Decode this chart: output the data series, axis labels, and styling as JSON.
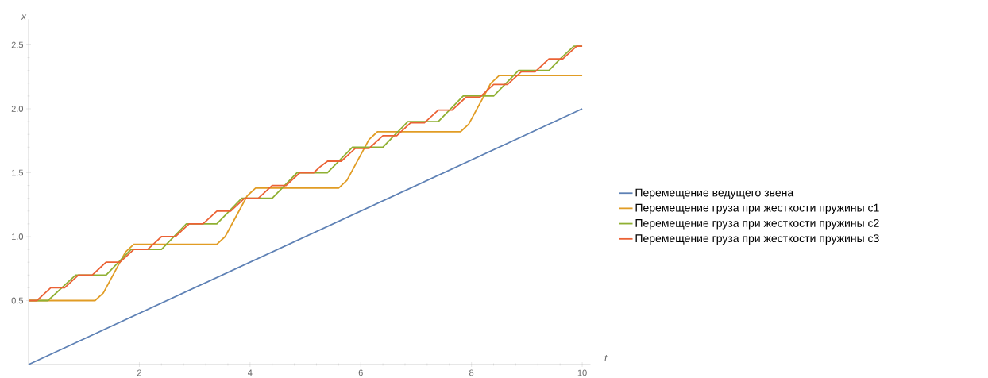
{
  "chart_data": {
    "type": "line",
    "xlabel": "t",
    "ylabel": "x",
    "xlim": [
      0,
      10.15
    ],
    "ylim": [
      0,
      2.7
    ],
    "xticks": [
      2,
      4,
      6,
      8,
      10
    ],
    "yticks": [
      0.5,
      {
        "value": 1,
        "label": "1.0"
      },
      1.5,
      {
        "value": 2,
        "label": "2.0"
      },
      2.5
    ],
    "legend": "right",
    "grid": false,
    "marker": "none",
    "line_style": "solid",
    "series": [
      {
        "name": "Перемещение ведущего звена",
        "color": "#5e81b5",
        "x": [
          0,
          10
        ],
        "values": [
          0,
          2.0
        ]
      },
      {
        "name": "Перемещение груза при жесткости пружины с1",
        "color": "#e19c24",
        "x": [
          0,
          1.2,
          1.35,
          1.55,
          1.75,
          1.9,
          3.4,
          3.55,
          3.75,
          3.95,
          4.1,
          5.6,
          5.75,
          5.95,
          6.15,
          6.3,
          7.8,
          7.95,
          8.15,
          8.35,
          8.5,
          10
        ],
        "values": [
          0.5,
          0.5,
          0.56,
          0.72,
          0.88,
          0.94,
          0.94,
          1.0,
          1.16,
          1.32,
          1.38,
          1.38,
          1.44,
          1.6,
          1.76,
          1.82,
          1.82,
          1.88,
          2.04,
          2.2,
          2.26,
          2.26
        ]
      },
      {
        "name": "Перемещение груза при жесткости пружины с2",
        "color": "#8fb032",
        "x": [
          0,
          0.35,
          0.6,
          0.85,
          1.4,
          1.625,
          1.85,
          2.4,
          2.625,
          2.85,
          3.4,
          3.625,
          3.85,
          4.4,
          4.625,
          4.85,
          5.4,
          5.625,
          5.85,
          6.4,
          6.625,
          6.85,
          7.4,
          7.625,
          7.85,
          8.4,
          8.625,
          8.85,
          9.4,
          9.625,
          9.85,
          10
        ],
        "values": [
          0.5,
          0.5,
          0.6,
          0.7,
          0.7,
          0.8,
          0.9,
          0.9,
          1.0,
          1.1,
          1.1,
          1.2,
          1.3,
          1.3,
          1.4,
          1.5,
          1.5,
          1.6,
          1.7,
          1.7,
          1.8,
          1.9,
          1.9,
          2.0,
          2.1,
          2.1,
          2.2,
          2.3,
          2.3,
          2.4,
          2.49,
          2.49
        ]
      },
      {
        "name": "Перемещение груза при жесткости пружины с3",
        "color": "#eb6235",
        "x": [
          0,
          0.15,
          0.275,
          0.4,
          0.65,
          0.775,
          0.9,
          1.15,
          1.275,
          1.4,
          1.65,
          1.775,
          1.9,
          2.15,
          2.275,
          2.4,
          2.65,
          2.775,
          2.9,
          3.15,
          3.275,
          3.4,
          3.65,
          3.775,
          3.9,
          4.15,
          4.275,
          4.4,
          4.65,
          4.775,
          4.9,
          5.15,
          5.275,
          5.4,
          5.65,
          5.775,
          5.9,
          6.15,
          6.275,
          6.4,
          6.65,
          6.775,
          6.9,
          7.15,
          7.275,
          7.4,
          7.65,
          7.775,
          7.9,
          8.15,
          8.275,
          8.4,
          8.65,
          8.775,
          8.9,
          9.15,
          9.275,
          9.4,
          9.65,
          9.775,
          9.9,
          10
        ],
        "values": [
          0.5,
          0.5,
          0.55,
          0.6,
          0.6,
          0.65,
          0.7,
          0.7,
          0.75,
          0.8,
          0.8,
          0.85,
          0.9,
          0.9,
          0.95,
          1.0,
          1.0,
          1.05,
          1.1,
          1.1,
          1.15,
          1.2,
          1.2,
          1.25,
          1.3,
          1.3,
          1.35,
          1.4,
          1.4,
          1.45,
          1.5,
          1.5,
          1.55,
          1.59,
          1.59,
          1.64,
          1.69,
          1.69,
          1.74,
          1.79,
          1.79,
          1.84,
          1.89,
          1.89,
          1.94,
          1.99,
          1.99,
          2.04,
          2.09,
          2.09,
          2.14,
          2.19,
          2.19,
          2.24,
          2.29,
          2.29,
          2.34,
          2.39,
          2.39,
          2.44,
          2.49,
          2.49
        ]
      }
    ]
  }
}
